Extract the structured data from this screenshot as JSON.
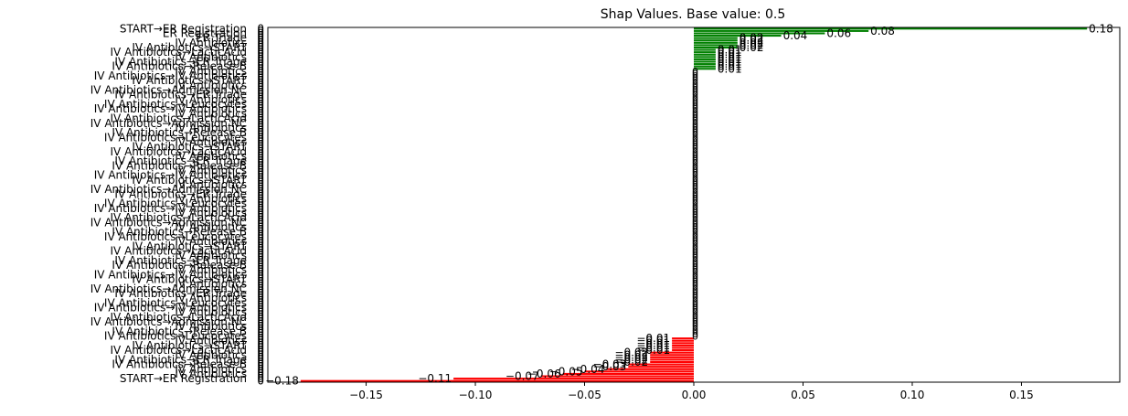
{
  "chart_data": {
    "type": "bar",
    "orientation": "horizontal",
    "title": "Shap Values. Base value: 0.5",
    "xlabel": "",
    "ylabel": "",
    "xlim": [
      -0.195,
      0.195
    ],
    "xticks": [
      -0.15,
      -0.1,
      -0.05,
      0.0,
      0.05,
      0.1,
      0.15
    ],
    "xtick_labels": [
      "−0.15",
      "−0.10",
      "−0.05",
      "0.00",
      "0.05",
      "0.10",
      "0.15"
    ],
    "grid": false,
    "legend": "none",
    "colors": {
      "positive": "#008000",
      "negative": "#ff0000"
    },
    "category_names_pool": [
      "ER Registration",
      "ER Triage",
      "ER Sepsis Triage",
      "IV Antibiotics",
      "IV Liquid",
      "Admission NC",
      "Admission IC",
      "Leucocytes",
      "CRP",
      "LacticAcid",
      "Release A",
      "Release B",
      "Return ER",
      "START"
    ],
    "top_labels": [
      "START→ER Registration",
      "ER Registration",
      "ER Triage"
    ],
    "bottom_labels": [
      "IV Antibiotics",
      "START→ER Registration"
    ],
    "bar_count": 150,
    "positive_values": [
      0.18,
      0.08,
      0.06,
      0.04,
      0.02,
      0.02,
      0.02,
      0.02,
      0.02,
      0.01,
      0.01,
      0.01,
      0.01,
      0.01,
      0.01,
      0.01,
      0.01,
      0.01
    ],
    "positive_labels": [
      "0.18",
      "0.08",
      "0.06",
      "0.04",
      "0.02",
      "0.02",
      "0.02",
      "0.02",
      "0.02",
      "0.01",
      "0.01",
      "0.01",
      "0.01",
      "0.01",
      "0.01",
      "0.01",
      "0.01",
      "0.01"
    ],
    "negative_values": [
      -0.01,
      -0.01,
      -0.01,
      -0.01,
      -0.01,
      -0.01,
      -0.02,
      -0.02,
      -0.02,
      -0.02,
      -0.02,
      -0.03,
      -0.03,
      -0.04,
      -0.05,
      -0.06,
      -0.07,
      -0.11,
      -0.18
    ],
    "negative_labels": [
      "−0.01",
      "−0.01",
      "−0.01",
      "−0.01",
      "−0.01",
      "−0.01",
      "−0.02",
      "−0.02",
      "−0.02",
      "−0.02",
      "−0.02",
      "−0.03",
      "−0.03",
      "−0.04",
      "−0.05",
      "−0.06",
      "−0.07",
      "−0.11",
      "−0.18"
    ],
    "zero_label": "0"
  }
}
